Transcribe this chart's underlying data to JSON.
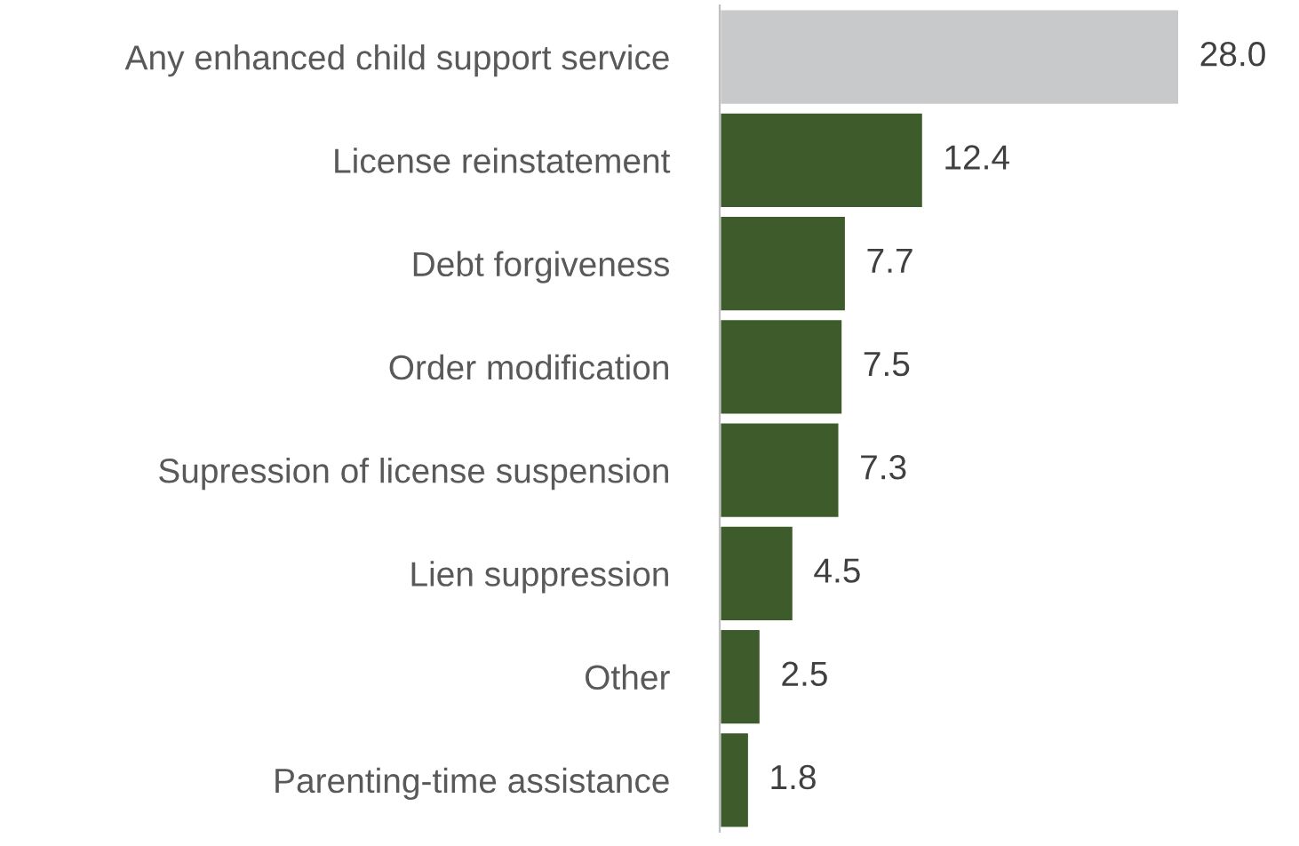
{
  "chart_data": {
    "type": "bar",
    "orientation": "horizontal",
    "categories": [
      "Any enhanced child support service",
      "License reinstatement",
      "Debt forgiveness",
      "Order modification",
      "Supression of license suspension",
      "Lien suppression",
      "Other",
      "Parenting-time assistance"
    ],
    "values": [
      28.0,
      12.4,
      7.7,
      7.5,
      7.3,
      4.5,
      2.5,
      1.8
    ],
    "colors": [
      "#c8c9cb",
      "#3e5c2b",
      "#3e5c2b",
      "#3e5c2b",
      "#3e5c2b",
      "#3e5c2b",
      "#3e5c2b",
      "#3e5c2b"
    ],
    "value_labels": [
      "28.0",
      "12.4",
      "7.7",
      "7.5",
      "7.3",
      "4.5",
      "2.5",
      "1.8"
    ],
    "grid": false,
    "legend": false
  }
}
